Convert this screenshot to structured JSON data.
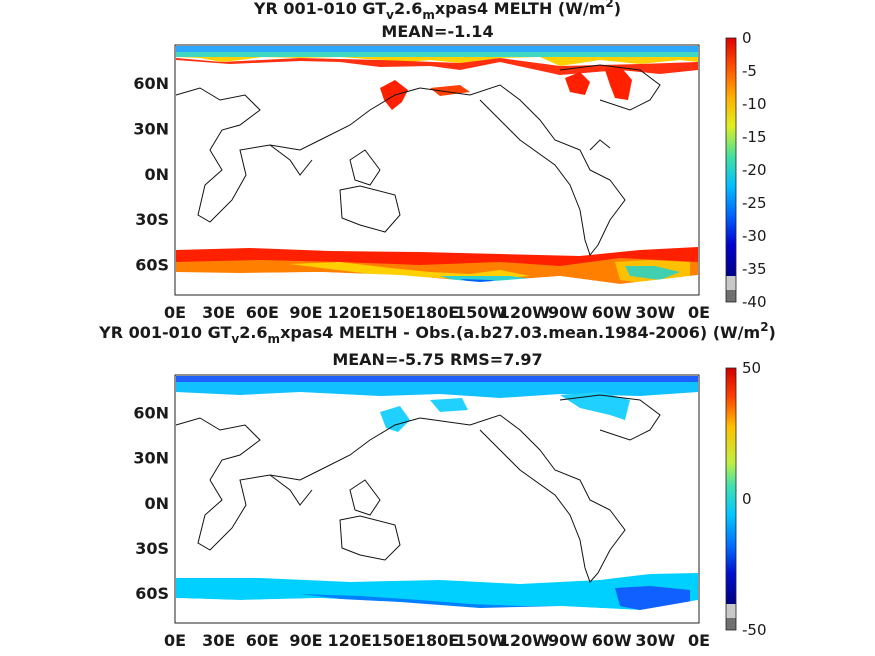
{
  "chart_data": [
    {
      "type": "heatmap",
      "title_line1_a": "YR 001-010 GT",
      "title_line1_sub": "v",
      "title_line1_b": "2.6",
      "title_line1_sub2": "m",
      "title_line1_c": "xpas4  MELTH (W/m",
      "title_line1_sup": "2",
      "title_line1_d": ")",
      "subtitle": "MEAN=-1.14",
      "x_ticks": [
        "0E",
        "30E",
        "60E",
        "90E",
        "120E",
        "150E",
        "180E",
        "150W",
        "120W",
        "90W",
        "60W",
        "30W",
        "0E"
      ],
      "y_ticks": [
        "60N",
        "30N",
        "0N",
        "30S",
        "60S"
      ],
      "y_tick_lat": [
        60,
        30,
        0,
        -30,
        -60
      ],
      "ylim": [
        -80,
        85
      ],
      "colorbar": {
        "min": -40,
        "max": 0,
        "ticks": [
          0,
          -5,
          -10,
          -15,
          -20,
          -25,
          -30,
          -35,
          -40
        ]
      }
    },
    {
      "type": "heatmap",
      "title_line1_a": "YR 001-010 GT",
      "title_line1_sub": "v",
      "title_line1_b": "2.6",
      "title_line1_sub2": "m",
      "title_line1_c": "xpas4 MELTH - Obs.(a.b27.03.mean.1984-2006) (W/m",
      "title_line1_sup": "2",
      "title_line1_d": ")",
      "subtitle": "MEAN=-5.75 RMS=7.97",
      "x_ticks": [
        "0E",
        "30E",
        "60E",
        "90E",
        "120E",
        "150E",
        "180E",
        "150W",
        "120W",
        "90W",
        "60W",
        "30W",
        "0E"
      ],
      "y_ticks": [
        "60N",
        "30N",
        "0N",
        "30S",
        "60S"
      ],
      "y_tick_lat": [
        60,
        30,
        0,
        -30,
        -60
      ],
      "ylim": [
        -80,
        85
      ],
      "colorbar": {
        "min": -50,
        "max": 50,
        "ticks": [
          50,
          0,
          -50
        ]
      }
    }
  ]
}
